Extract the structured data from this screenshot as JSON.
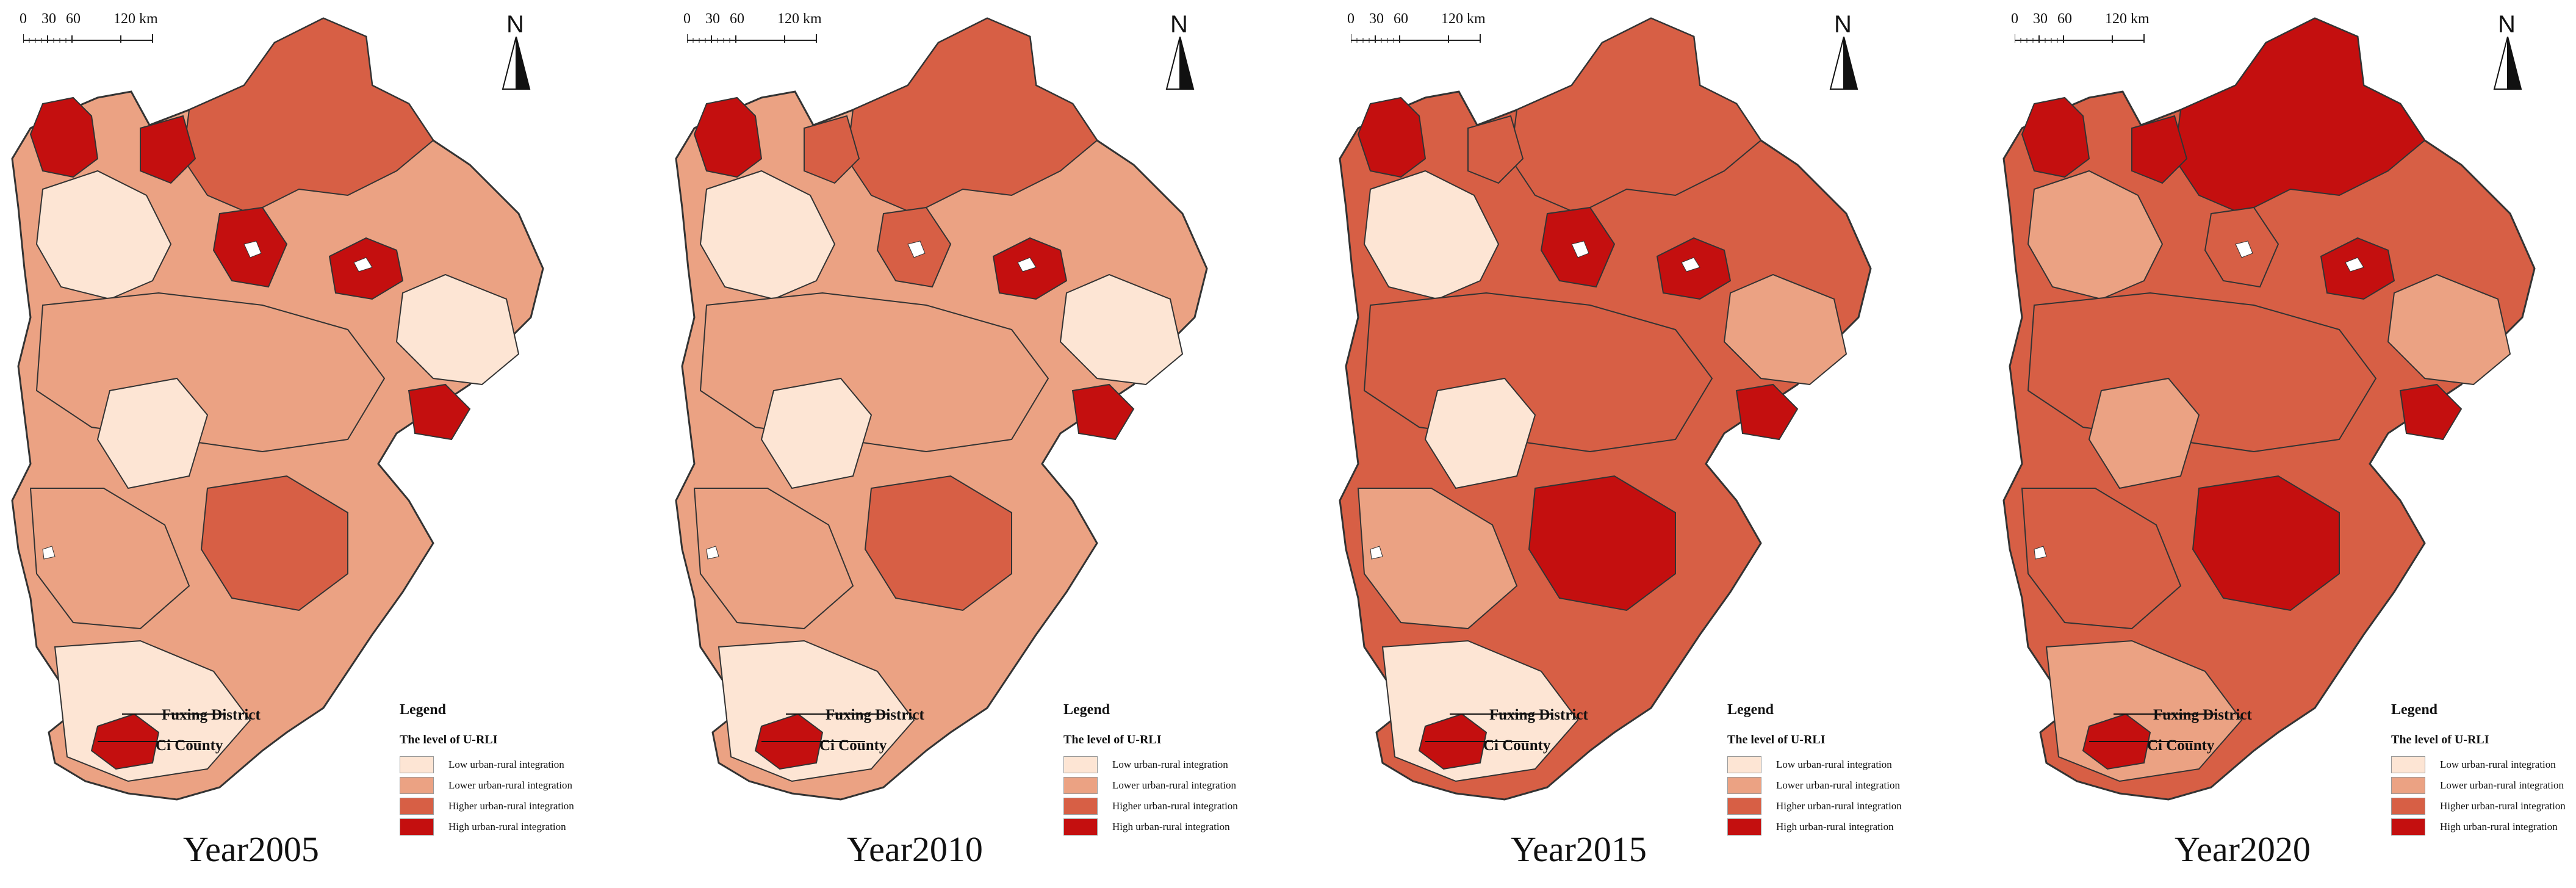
{
  "scale_bar": {
    "ticks": [
      "0",
      "30",
      "60",
      "120 km"
    ]
  },
  "north_arrow": {
    "label": "N",
    "icon": "north-arrow-icon"
  },
  "legend": {
    "title": "Legend",
    "subtitle": "The level of U-RLI",
    "items": [
      {
        "label": "Low urban-rural integration",
        "color": "#fde5d4"
      },
      {
        "label": "Lower urban-rural integration",
        "color": "#eba283"
      },
      {
        "label": "Higher urban-rural integration",
        "color": "#d75f45"
      },
      {
        "label": "High urban-rural integration",
        "color": "#c40f0f"
      }
    ]
  },
  "callouts": {
    "district": "Fuxing District",
    "county": "Ci County"
  },
  "panels": [
    {
      "year_label": "Year2005",
      "high_regions": [
        "northwest-a",
        "northwest-b",
        "center-north",
        "east-port",
        "south-tip"
      ],
      "dominant": "mixed-low"
    },
    {
      "year_label": "Year2010",
      "high_regions": [
        "northwest-a",
        "east-port",
        "center-core",
        "south-tip"
      ],
      "dominant": "mixed-low"
    },
    {
      "year_label": "Year2015",
      "high_regions": [
        "northwest-a",
        "center-north",
        "east-port",
        "south-center",
        "south-tip"
      ],
      "dominant": "mixed-higher"
    },
    {
      "year_label": "Year2020",
      "high_regions": [
        "northwest-a",
        "northwest-b",
        "north-wide",
        "east-port",
        "south-center",
        "south-tip"
      ],
      "dominant": "higher"
    }
  ]
}
